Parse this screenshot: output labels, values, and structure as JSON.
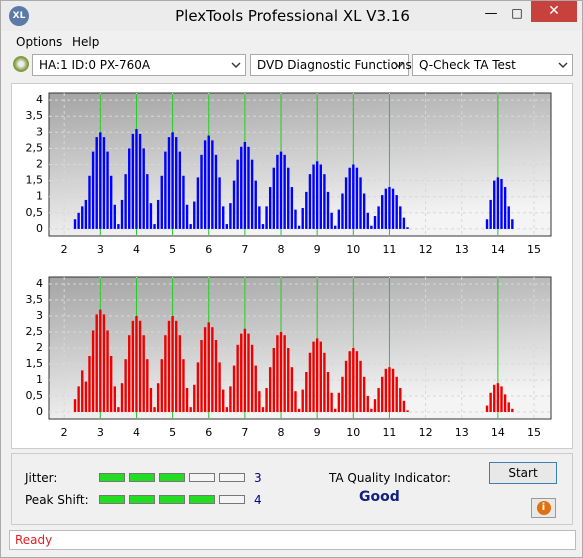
{
  "window": {
    "title": "PlexTools Professional XL V3.16"
  },
  "menu": [
    "Options",
    "Help"
  ],
  "toolbar": {
    "drive": "HA:1 ID:0  PX-760A",
    "function": "DVD Diagnostic Functions",
    "test": "Q-Check TA Test"
  },
  "chart_data": [
    {
      "type": "bar",
      "color": "#0000ff",
      "marker_color": "#22cc22",
      "grid": true,
      "xlim": [
        1.58,
        15.47
      ],
      "ylim": [
        -0.22,
        4.22
      ],
      "xticks": [
        2,
        3,
        4,
        5,
        6,
        7,
        8,
        9,
        10,
        11,
        12,
        13,
        14,
        15
      ],
      "yticks": [
        0,
        {
          "value": 0.5,
          "label": "0,5"
        },
        1,
        {
          "value": 1.5,
          "label": "1,5"
        },
        2,
        {
          "value": 2.5,
          "label": "2,5"
        },
        3,
        {
          "value": 3.5,
          "label": "3,5"
        },
        4
      ],
      "markers": [
        3,
        4,
        5,
        6,
        7,
        8,
        9,
        10,
        11,
        14
      ],
      "x": [
        2.3,
        2.4,
        2.5,
        2.6,
        2.7,
        2.8,
        2.9,
        3,
        3.1,
        3.2,
        3.3,
        3.4,
        3.5,
        3.6,
        3.7,
        3.8,
        3.9,
        4,
        4.1,
        4.2,
        4.3,
        4.4,
        4.5,
        4.6,
        4.7,
        4.8,
        4.9,
        5,
        5.1,
        5.2,
        5.3,
        5.4,
        5.5,
        5.6,
        5.7,
        5.8,
        5.9,
        6,
        6.1,
        6.2,
        6.3,
        6.4,
        6.5,
        6.6,
        6.7,
        6.8,
        6.9,
        7,
        7.1,
        7.2,
        7.3,
        7.4,
        7.5,
        7.6,
        7.7,
        7.8,
        7.9,
        8,
        8.1,
        8.2,
        8.3,
        8.4,
        8.5,
        8.6,
        8.7,
        8.8,
        8.9,
        9,
        9.1,
        9.2,
        9.3,
        9.4,
        9.5,
        9.6,
        9.7,
        9.8,
        9.9,
        10,
        10.1,
        10.2,
        10.3,
        10.4,
        10.5,
        10.6,
        10.7,
        10.8,
        10.9,
        11,
        11.1,
        11.2,
        11.3,
        11.4,
        11.5,
        13.7,
        13.8,
        13.9,
        14,
        14.1,
        14.2,
        14.3,
        14.4
      ],
      "values": [
        0.3,
        0.5,
        0.7,
        0.9,
        1.65,
        2.4,
        2.85,
        3.0,
        2.85,
        2.4,
        1.65,
        0.75,
        0.15,
        0.9,
        1.7,
        2.5,
        2.95,
        3.1,
        2.95,
        2.5,
        1.7,
        0.8,
        0.15,
        0.9,
        1.65,
        2.4,
        2.85,
        3.0,
        2.85,
        2.4,
        1.65,
        0.75,
        0.15,
        0.85,
        1.6,
        2.3,
        2.75,
        2.9,
        2.75,
        2.3,
        1.6,
        0.7,
        0.15,
        0.8,
        1.5,
        2.15,
        2.55,
        2.7,
        2.55,
        2.15,
        1.5,
        0.7,
        0.15,
        0.7,
        1.3,
        1.9,
        2.3,
        2.4,
        2.3,
        1.9,
        1.3,
        0.6,
        0.1,
        0.65,
        1.15,
        1.7,
        2.0,
        2.1,
        2.0,
        1.7,
        1.15,
        0.5,
        0.1,
        0.6,
        1.1,
        1.6,
        1.9,
        2.0,
        1.9,
        1.6,
        1.1,
        0.5,
        0.1,
        0.4,
        0.7,
        1.05,
        1.25,
        1.3,
        1.25,
        1.05,
        0.7,
        0.35,
        0.05,
        0.3,
        0.9,
        1.5,
        1.6,
        1.55,
        1.3,
        0.7,
        0.3
      ]
    },
    {
      "type": "bar",
      "color": "#ee0000",
      "marker_color": "#22cc22",
      "grid": true,
      "xlim": [
        1.58,
        15.47
      ],
      "ylim": [
        -0.22,
        4.22
      ],
      "xticks": [
        2,
        3,
        4,
        5,
        6,
        7,
        8,
        9,
        10,
        11,
        12,
        13,
        14,
        15
      ],
      "yticks": [
        0,
        {
          "value": 0.5,
          "label": "0,5"
        },
        1,
        {
          "value": 1.5,
          "label": "1,5"
        },
        2,
        {
          "value": 2.5,
          "label": "2,5"
        },
        3,
        {
          "value": 3.5,
          "label": "3,5"
        },
        4
      ],
      "markers": [
        3,
        4,
        5,
        6,
        7,
        8,
        9,
        10,
        11,
        14
      ],
      "x": [
        2.3,
        2.4,
        2.5,
        2.6,
        2.7,
        2.8,
        2.9,
        3,
        3.1,
        3.2,
        3.3,
        3.4,
        3.5,
        3.6,
        3.7,
        3.8,
        3.9,
        4,
        4.1,
        4.2,
        4.3,
        4.4,
        4.5,
        4.6,
        4.7,
        4.8,
        4.9,
        5,
        5.1,
        5.2,
        5.3,
        5.4,
        5.5,
        5.6,
        5.7,
        5.8,
        5.9,
        6,
        6.1,
        6.2,
        6.3,
        6.4,
        6.5,
        6.6,
        6.7,
        6.8,
        6.9,
        7,
        7.1,
        7.2,
        7.3,
        7.4,
        7.5,
        7.6,
        7.7,
        7.8,
        7.9,
        8,
        8.1,
        8.2,
        8.3,
        8.4,
        8.5,
        8.6,
        8.7,
        8.8,
        8.9,
        9,
        9.1,
        9.2,
        9.3,
        9.4,
        9.5,
        9.6,
        9.7,
        9.8,
        9.9,
        10,
        10.1,
        10.2,
        10.3,
        10.4,
        10.5,
        10.6,
        10.7,
        10.8,
        10.9,
        11,
        11.1,
        11.2,
        11.3,
        11.4,
        11.5,
        13.7,
        13.8,
        13.9,
        14,
        14.1,
        14.2,
        14.3,
        14.4
      ],
      "values": [
        0.4,
        0.8,
        1.3,
        0.95,
        1.75,
        2.55,
        3.05,
        3.2,
        3.05,
        2.55,
        1.75,
        0.8,
        0.15,
        0.9,
        1.65,
        2.4,
        2.85,
        3.0,
        2.85,
        2.4,
        1.65,
        0.75,
        0.15,
        0.9,
        1.65,
        2.4,
        2.85,
        3.0,
        2.85,
        2.4,
        1.65,
        0.75,
        0.15,
        0.85,
        1.55,
        2.25,
        2.65,
        2.8,
        2.65,
        2.25,
        1.55,
        0.7,
        0.15,
        0.8,
        1.45,
        2.1,
        2.45,
        2.6,
        2.45,
        2.1,
        1.45,
        0.65,
        0.15,
        0.75,
        1.4,
        2.0,
        2.4,
        2.5,
        2.4,
        2.0,
        1.4,
        0.65,
        0.1,
        0.7,
        1.25,
        1.85,
        2.2,
        2.3,
        2.2,
        1.85,
        1.25,
        0.6,
        0.1,
        0.6,
        1.1,
        1.6,
        1.9,
        2.0,
        1.9,
        1.6,
        1.1,
        0.5,
        0.1,
        0.4,
        0.75,
        1.1,
        1.35,
        1.4,
        1.35,
        1.1,
        0.75,
        0.35,
        0.05,
        0.2,
        0.6,
        0.85,
        0.9,
        0.8,
        0.55,
        0.3,
        0.1
      ]
    }
  ],
  "results": {
    "jitter": {
      "label": "Jitter:",
      "value": 3
    },
    "peak_shift": {
      "label": "Peak Shift:",
      "value": 4
    },
    "quality_label": "TA Quality Indicator:",
    "quality": "Good"
  },
  "buttons": {
    "start": "Start"
  },
  "status": "Ready"
}
